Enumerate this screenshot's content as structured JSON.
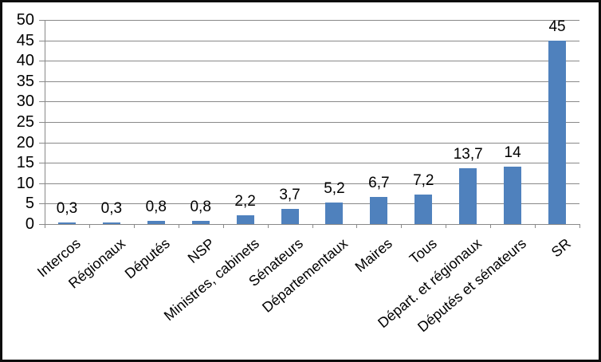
{
  "chart_data": {
    "type": "bar",
    "categories": [
      "Intercos",
      "Régionaux",
      "Députés",
      "NSP",
      "Ministres, cabinets",
      "Sénateurs",
      "Départementaux",
      "Maires",
      "Tous",
      "Départ. et régionaux",
      "Députés et sénateurs",
      "SR"
    ],
    "values": [
      0.3,
      0.3,
      0.8,
      0.8,
      2.2,
      3.7,
      5.2,
      6.7,
      7.2,
      13.7,
      14,
      45
    ],
    "data_labels": [
      "0,3",
      "0,3",
      "0,8",
      "0,8",
      "2,2",
      "3,7",
      "5,2",
      "6,7",
      "7,2",
      "13,7",
      "14",
      "45"
    ],
    "title": "",
    "xlabel": "",
    "ylabel": "",
    "ylim": [
      0,
      50
    ],
    "ytick_step": 5,
    "ytick_labels": [
      "0",
      "5",
      "10",
      "15",
      "20",
      "25",
      "30",
      "35",
      "40",
      "45",
      "50"
    ],
    "grid": true,
    "legend": false,
    "x_label_rotation_deg": 40,
    "colors": {
      "bar": "#4F81BD",
      "gridline": "#898989",
      "axis": "#898989",
      "text": "#000000",
      "frame_border": "#0d0d0d",
      "background": "#ffffff"
    }
  }
}
